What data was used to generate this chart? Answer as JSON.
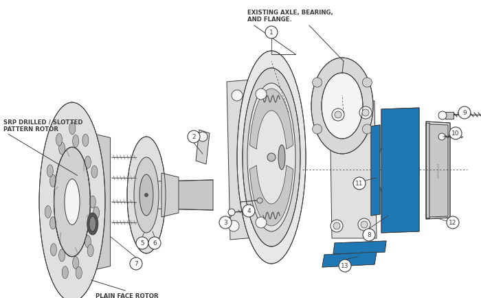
{
  "bg_color": "#ffffff",
  "lc": "#3a3a3a",
  "fill_light": "#e0e0e0",
  "fill_mid": "#c8c8c8",
  "fill_dark": "#a8a8a8",
  "fill_white": "#f5f5f5",
  "labels": {
    "srp": "SRP DRILLED / SLOTTED\nPATTERN ROTOR",
    "plain": "PLAIN FACE ROTOR",
    "axle": "EXISTING AXLE, BEARING,\nAND FLANGE."
  },
  "figsize": [
    7.0,
    4.35
  ],
  "dpi": 100
}
